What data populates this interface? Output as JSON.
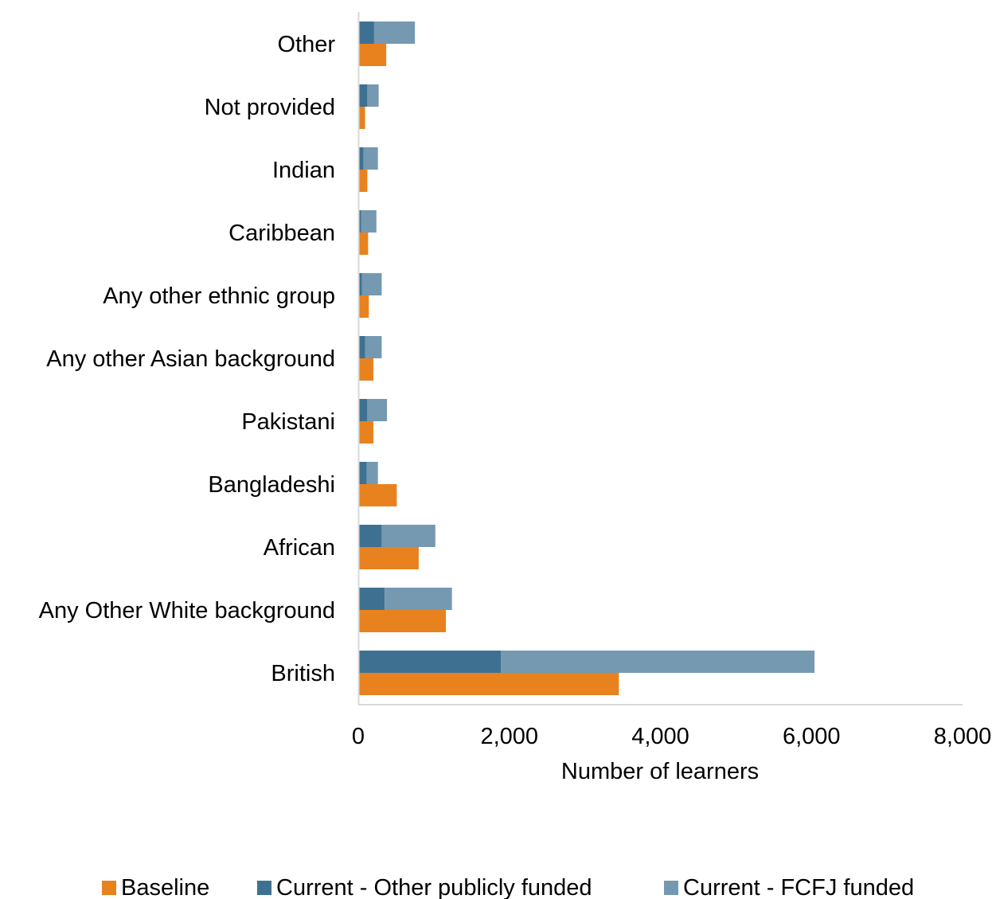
{
  "chart_data": {
    "type": "bar",
    "orientation": "horizontal",
    "categories": [
      "British",
      "Any Other White background",
      "African",
      "Bangladeshi",
      "Pakistani",
      "Any other Asian background",
      "Any other ethnic group",
      "Caribbean",
      "Indian",
      "Not provided",
      "Other"
    ],
    "series": [
      {
        "name": "Baseline",
        "color": "#e8821e",
        "values": [
          3450,
          1160,
          800,
          510,
          200,
          200,
          140,
          130,
          120,
          90,
          370
        ]
      },
      {
        "name": "Current - Other publicly funded",
        "color": "#3e7191",
        "stack": "current",
        "values": [
          1890,
          350,
          310,
          110,
          120,
          90,
          50,
          40,
          70,
          120,
          210
        ]
      },
      {
        "name": "Current - FCFJ funded",
        "color": "#7599b1",
        "stack": "current",
        "values": [
          4150,
          890,
          710,
          150,
          260,
          220,
          260,
          200,
          190,
          150,
          540
        ]
      }
    ],
    "xlabel": "Number of learners",
    "ylabel": "",
    "xlim": [
      0,
      8000
    ],
    "xticks": [
      "0",
      "2,000",
      "4,000",
      "6,000",
      "8,000"
    ],
    "grid": false,
    "legend": "bottom"
  }
}
